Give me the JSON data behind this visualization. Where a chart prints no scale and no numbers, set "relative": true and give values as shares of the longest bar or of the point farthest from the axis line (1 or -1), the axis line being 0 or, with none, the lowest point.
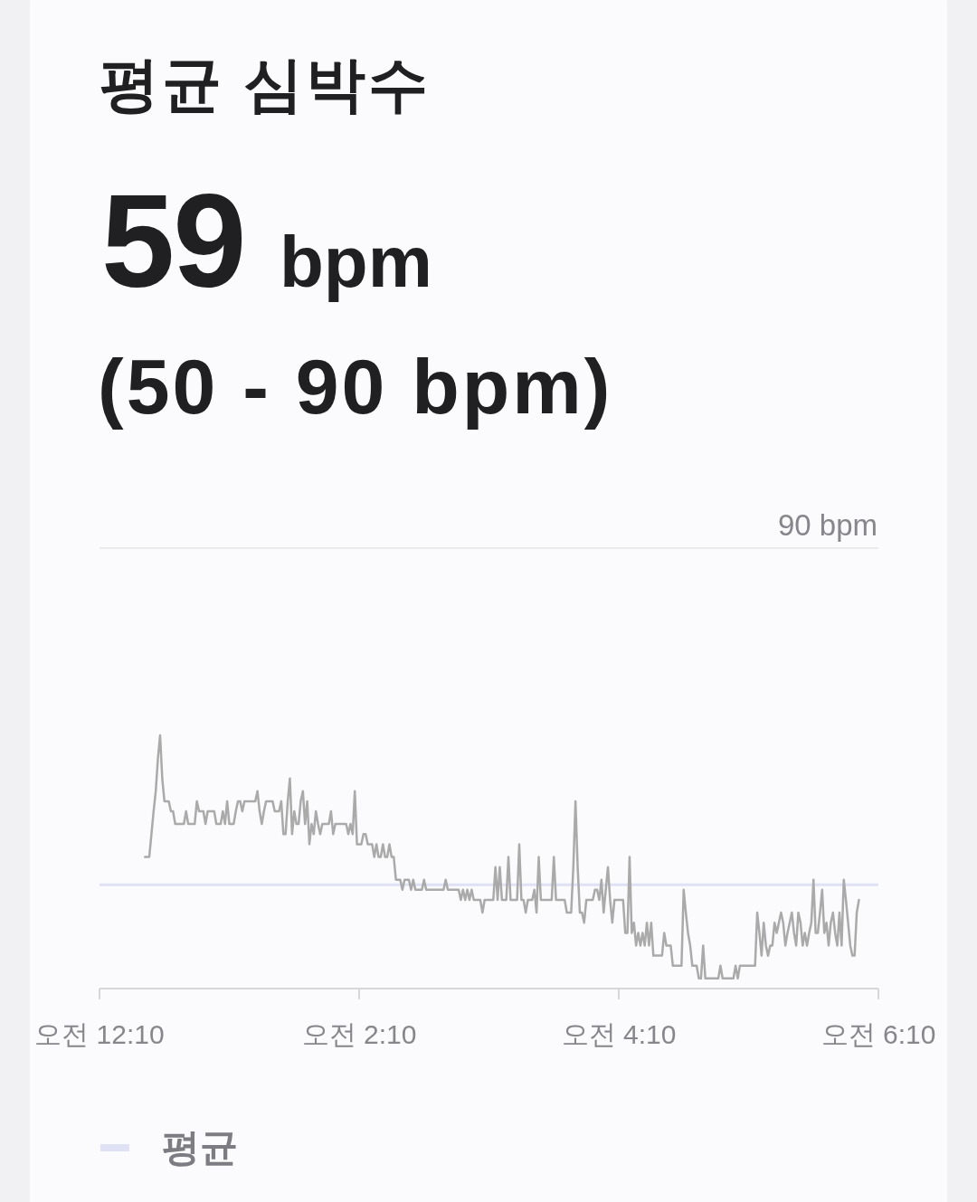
{
  "chart_data": {
    "type": "line",
    "title": "평균 심박수",
    "subtitle": "59 bpm",
    "relative": true,
    "annotations": [
      "(50 - 90 bpm)",
      {
        "text": "90 bpm",
        "y": 1.74
      }
    ],
    "categories": [
      "오전 12:10",
      null,
      null,
      null,
      null,
      null,
      null,
      null,
      null,
      null,
      null,
      null,
      null,
      null,
      null,
      null,
      null,
      null,
      null,
      null,
      null,
      null,
      null,
      null,
      null,
      null,
      null,
      null,
      null,
      null,
      null,
      null,
      null,
      null,
      null,
      null,
      null,
      null,
      null,
      null,
      null,
      null,
      null,
      null,
      null,
      null,
      null,
      null,
      null,
      null,
      null,
      null,
      null,
      null,
      null,
      null,
      null,
      null,
      null,
      null,
      null,
      null,
      null,
      null,
      null,
      null,
      null,
      null,
      null,
      null,
      null,
      null,
      null,
      null,
      null,
      null,
      null,
      null,
      null,
      null,
      null,
      null,
      null,
      null,
      null,
      null,
      null,
      null,
      null,
      null,
      null,
      null,
      null,
      null,
      null,
      null,
      null,
      null,
      null,
      null,
      null,
      null,
      null,
      null,
      null,
      null,
      null,
      null,
      null,
      null,
      null,
      null,
      null,
      null,
      null,
      null,
      null,
      null,
      null,
      null,
      "오전 2:10",
      null,
      null,
      null,
      null,
      null,
      null,
      null,
      null,
      null,
      null,
      null,
      null,
      null,
      null,
      null,
      null,
      null,
      null,
      null,
      null,
      null,
      null,
      null,
      null,
      null,
      null,
      null,
      null,
      null,
      null,
      null,
      null,
      null,
      null,
      null,
      null,
      null,
      null,
      null,
      null,
      null,
      null,
      null,
      null,
      null,
      null,
      null,
      null,
      null,
      null,
      null,
      null,
      null,
      null,
      null,
      null,
      null,
      null,
      null,
      null,
      null,
      null,
      null,
      null,
      null,
      null,
      null,
      null,
      null,
      null,
      null,
      null,
      null,
      null,
      null,
      null,
      null,
      null,
      null,
      null,
      null,
      null,
      null,
      null,
      null,
      null,
      null,
      null,
      null,
      null,
      null,
      null,
      null,
      null,
      null,
      null,
      null,
      null,
      null,
      null,
      null,
      null,
      null,
      null,
      null,
      null,
      null,
      null,
      null,
      null,
      null,
      null,
      null,
      null,
      null,
      null,
      null,
      null,
      null,
      "오전 4:10",
      null,
      null,
      null,
      null,
      null,
      null,
      null,
      null,
      null,
      null,
      null,
      null,
      null,
      null,
      null,
      null,
      null,
      null,
      null,
      null,
      null,
      null,
      null,
      null,
      null,
      null,
      null,
      null,
      null,
      null,
      null,
      null,
      null,
      null,
      null,
      null,
      null,
      null,
      null,
      null,
      null,
      null,
      null,
      null,
      null,
      null,
      null,
      null,
      null,
      null,
      null,
      null,
      null,
      null,
      null,
      null,
      null,
      null,
      null,
      null,
      null,
      null,
      null,
      null,
      null,
      null,
      null,
      null,
      null,
      null,
      null,
      null,
      null,
      null,
      null,
      null,
      null,
      null,
      null,
      null,
      null,
      null,
      null,
      null,
      null,
      null,
      null,
      null,
      null,
      null,
      null,
      null,
      null,
      null,
      null,
      null,
      null,
      null,
      null,
      null,
      null,
      null,
      null,
      null,
      null,
      null,
      null,
      null,
      null,
      null,
      null,
      null,
      null,
      null,
      null,
      null,
      null,
      null,
      null,
      "오전 6:10"
    ],
    "series": [
      {
        "color": "#aaaaaa",
        "values": [
          null,
          null,
          null,
          null,
          null,
          null,
          null,
          null,
          null,
          null,
          null,
          null,
          null,
          null,
          null,
          null,
          null,
          null,
          null,
          null,
          null,
          0.52,
          0.52,
          0.52,
          0.61,
          0.7,
          0.78,
          0.91,
          1,
          0.83,
          0.74,
          0.74,
          0.74,
          0.7,
          0.7,
          0.65,
          0.65,
          0.65,
          0.65,
          0.65,
          0.7,
          0.65,
          0.65,
          0.65,
          0.65,
          0.74,
          0.7,
          0.7,
          0.7,
          0.65,
          0.7,
          0.7,
          0.7,
          0.7,
          0.65,
          0.65,
          0.65,
          0.7,
          0.65,
          0.74,
          0.65,
          0.65,
          0.65,
          0.7,
          0.74,
          0.74,
          0.7,
          0.74,
          0.74,
          0.74,
          0.74,
          0.74,
          0.74,
          0.78,
          0.7,
          0.65,
          0.7,
          0.74,
          0.74,
          0.74,
          0.74,
          0.7,
          0.7,
          0.7,
          0.74,
          0.61,
          0.61,
          0.74,
          0.83,
          0.61,
          0.7,
          0.65,
          0.65,
          0.74,
          0.78,
          0.65,
          0.74,
          0.57,
          0.65,
          0.61,
          0.7,
          0.65,
          0.61,
          0.65,
          0.65,
          0.65,
          0.65,
          0.7,
          0.61,
          0.65,
          0.65,
          0.65,
          0.65,
          0.65,
          0.65,
          0.61,
          0.65,
          0.61,
          0.78,
          0.57,
          0.57,
          0.57,
          0.61,
          0.61,
          0.57,
          0.57,
          0.57,
          0.52,
          0.57,
          0.52,
          0.52,
          0.57,
          0.52,
          0.52,
          0.57,
          0.52,
          0.52,
          0.43,
          0.43,
          0.43,
          0.39,
          0.43,
          0.43,
          0.43,
          0.39,
          0.43,
          0.39,
          0.39,
          0.39,
          0.39,
          0.43,
          0.39,
          0.39,
          0.39,
          0.39,
          0.39,
          0.39,
          0.39,
          0.39,
          0.39,
          0.43,
          0.39,
          0.39,
          0.39,
          0.39,
          0.39,
          0.39,
          0.35,
          0.39,
          0.35,
          0.39,
          0.35,
          0.39,
          0.35,
          0.35,
          0.35,
          0.35,
          0.3,
          0.35,
          0.35,
          0.35,
          0.35,
          0.35,
          0.48,
          0.35,
          0.48,
          0.35,
          0.35,
          0.35,
          0.52,
          0.35,
          0.35,
          0.35,
          0.35,
          0.57,
          0.35,
          0.35,
          0.3,
          0.35,
          0.35,
          0.35,
          0.39,
          0.3,
          0.52,
          0.35,
          0.35,
          0.35,
          0.35,
          0.35,
          0.35,
          0.52,
          0.35,
          0.35,
          0.35,
          0.35,
          0.35,
          0.3,
          0.3,
          0.3,
          0.48,
          0.74,
          0.48,
          0.3,
          0.3,
          0.26,
          0.35,
          0.35,
          0.35,
          0.35,
          0.39,
          0.39,
          0.35,
          0.43,
          0.3,
          0.39,
          0.48,
          0.35,
          0.26,
          0.35,
          0.35,
          0.35,
          0.35,
          0.35,
          0.22,
          0.22,
          0.52,
          0.22,
          0.26,
          0.17,
          0.22,
          0.17,
          0.22,
          0.17,
          0.26,
          0.17,
          0.26,
          0.13,
          0.13,
          0.13,
          0.13,
          0.13,
          0.22,
          0.17,
          0.17,
          0.17,
          0.09,
          0.09,
          0.09,
          0.09,
          0.09,
          0.39,
          0.3,
          0.22,
          0.17,
          0.09,
          0.09,
          0.09,
          0.04,
          0.04,
          0.17,
          0.04,
          0.04,
          0.04,
          0.04,
          0.04,
          0.04,
          0.04,
          0.09,
          0.04,
          0.04,
          0.04,
          0.04,
          0.04,
          0.04,
          0.09,
          0.04,
          0.09,
          0.09,
          0.09,
          0.09,
          0.09,
          0.09,
          0.09,
          0.09,
          0.3,
          0.22,
          0.13,
          0.26,
          0.17,
          0.13,
          0.17,
          0.17,
          0.26,
          0.22,
          0.26,
          0.3,
          0.26,
          0.17,
          0.22,
          0.26,
          0.3,
          0.22,
          0.17,
          0.3,
          0.26,
          0.17,
          0.22,
          0.17,
          0.22,
          0.26,
          0.43,
          0.22,
          0.22,
          0.3,
          0.39,
          0.22,
          0.26,
          0.17,
          0.26,
          0.3,
          0.22,
          0.17,
          0.3,
          0.17,
          0.43,
          0.35,
          0.26,
          0.17,
          0.13,
          0.13,
          0.3,
          0.35,
          null,
          null,
          null,
          null,
          null,
          null,
          null,
          null,
          null
        ]
      }
    ],
    "ref_lines": [
      {
        "axis": "y",
        "value": 1.74,
        "color": "#ebebee"
      },
      {
        "axis": "y",
        "value": 0.41,
        "label": "평균",
        "color": "#dfe2f5"
      }
    ],
    "legend": "bottom"
  }
}
